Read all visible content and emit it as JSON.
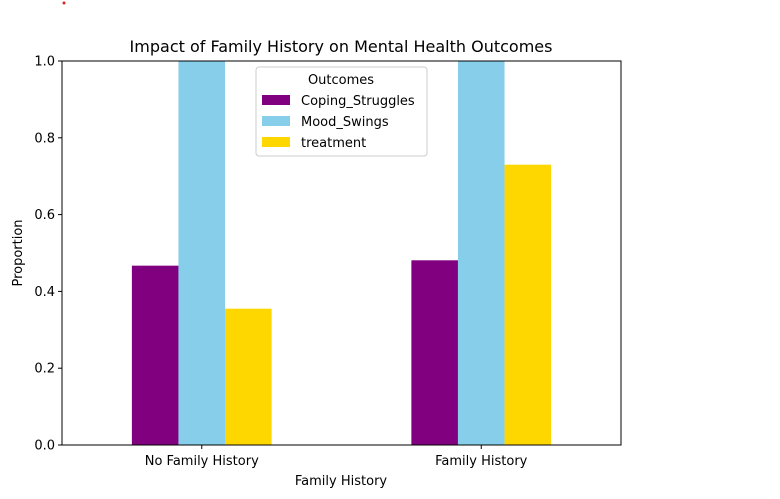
{
  "chart_data": {
    "type": "bar",
    "title": "Impact of Family History on Mental Health Outcomes",
    "xlabel": "Family History",
    "ylabel": "Proportion",
    "categories": [
      "No Family History",
      "Family History"
    ],
    "series": [
      {
        "name": "Coping_Struggles",
        "color": "#800080",
        "values": [
          0.467,
          0.481
        ]
      },
      {
        "name": "Mood_Swings",
        "color": "#87CEEB",
        "values": [
          1.0,
          1.0
        ]
      },
      {
        "name": "treatment",
        "color": "#FFD700",
        "values": [
          0.355,
          0.73
        ]
      }
    ],
    "ylim": [
      0,
      1.0
    ],
    "yticks": [
      "0.0",
      "0.2",
      "0.4",
      "0.6",
      "0.8",
      "1.0"
    ],
    "legend": {
      "title": "Outcomes",
      "position": "top-center"
    },
    "grid": false
  }
}
